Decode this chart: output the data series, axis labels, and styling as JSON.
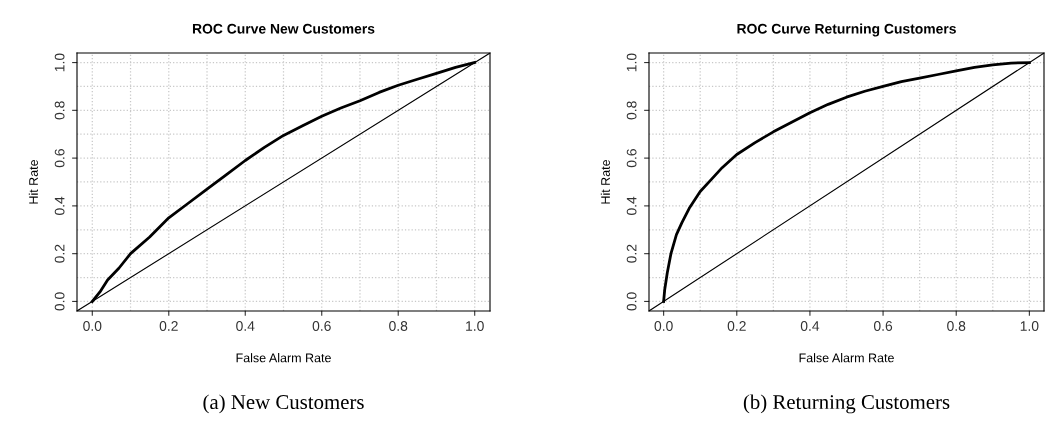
{
  "chart_data": [
    {
      "type": "line",
      "title": "ROC Curve New Customers",
      "xlabel": "False Alarm Rate",
      "ylabel": "Hit Rate",
      "annotations": [
        "(a) New Customers"
      ],
      "series": [
        {
          "color": "#000000",
          "x": [
            0,
            0.02,
            0.04,
            0.07,
            0.1,
            0.15,
            0.2,
            0.25,
            0.3,
            0.35,
            0.4,
            0.45,
            0.5,
            0.55,
            0.6,
            0.65,
            0.7,
            0.75,
            0.8,
            0.85,
            0.9,
            0.95,
            1
          ],
          "values": [
            0,
            0.04,
            0.09,
            0.14,
            0.2,
            0.27,
            0.35,
            0.41,
            0.47,
            0.53,
            0.59,
            0.645,
            0.695,
            0.735,
            0.775,
            0.81,
            0.84,
            0.875,
            0.905,
            0.93,
            0.955,
            0.98,
            1
          ]
        },
        {
          "color": "#000000",
          "x": [
            -0.04,
            1.04
          ],
          "values": [
            -0.04,
            1.04
          ]
        }
      ],
      "xlim": [
        -0.04,
        1.04
      ],
      "ylim": [
        -0.04,
        1.04
      ],
      "xticks": [
        {
          "value": 0,
          "label": "0.0"
        },
        {
          "value": 0.1,
          "label": null
        },
        0.2,
        {
          "value": 0.3,
          "label": null
        },
        0.4,
        {
          "value": 0.5,
          "label": null
        },
        0.6,
        {
          "value": 0.7,
          "label": null
        },
        0.8,
        {
          "value": 0.9,
          "label": null
        },
        {
          "value": 1,
          "label": "1.0"
        }
      ],
      "yticks": [
        {
          "value": 0,
          "label": "0.0"
        },
        {
          "value": 0.1,
          "label": null
        },
        0.2,
        {
          "value": 0.3,
          "label": null
        },
        0.4,
        {
          "value": 0.5,
          "label": null
        },
        0.6,
        {
          "value": 0.7,
          "label": null
        },
        0.8,
        {
          "value": 0.9,
          "label": null
        },
        {
          "value": 1,
          "label": "1.0"
        }
      ],
      "grid": true,
      "line_style": "solid"
    },
    {
      "type": "line",
      "title": "ROC Curve Returning Customers",
      "xlabel": "False Alarm Rate",
      "ylabel": "Hit Rate",
      "annotations": [
        "(b) Returning Customers"
      ],
      "series": [
        {
          "color": "#000000",
          "x": [
            0,
            0.003,
            0.01,
            0.02,
            0.035,
            0.05,
            0.07,
            0.1,
            0.13,
            0.16,
            0.2,
            0.25,
            0.3,
            0.35,
            0.4,
            0.45,
            0.5,
            0.55,
            0.6,
            0.65,
            0.7,
            0.75,
            0.8,
            0.85,
            0.9,
            0.95,
            1
          ],
          "values": [
            0,
            0.05,
            0.12,
            0.2,
            0.28,
            0.33,
            0.39,
            0.46,
            0.51,
            0.56,
            0.615,
            0.665,
            0.71,
            0.75,
            0.79,
            0.825,
            0.855,
            0.88,
            0.9,
            0.92,
            0.935,
            0.95,
            0.965,
            0.98,
            0.99,
            0.998,
            1
          ]
        },
        {
          "color": "#000000",
          "x": [
            -0.04,
            1.04
          ],
          "values": [
            -0.04,
            1.04
          ]
        }
      ],
      "xlim": [
        -0.04,
        1.04
      ],
      "ylim": [
        -0.04,
        1.04
      ],
      "xticks": [
        {
          "value": 0,
          "label": "0.0"
        },
        {
          "value": 0.1,
          "label": null
        },
        0.2,
        {
          "value": 0.3,
          "label": null
        },
        0.4,
        {
          "value": 0.5,
          "label": null
        },
        0.6,
        {
          "value": 0.7,
          "label": null
        },
        0.8,
        {
          "value": 0.9,
          "label": null
        },
        {
          "value": 1,
          "label": "1.0"
        }
      ],
      "yticks": [
        {
          "value": 0,
          "label": "0.0"
        },
        {
          "value": 0.1,
          "label": null
        },
        0.2,
        {
          "value": 0.3,
          "label": null
        },
        0.4,
        {
          "value": 0.5,
          "label": null
        },
        0.6,
        {
          "value": 0.7,
          "label": null
        },
        0.8,
        {
          "value": 0.9,
          "label": null
        },
        {
          "value": 1,
          "label": "1.0"
        }
      ],
      "grid": true,
      "line_style": "solid"
    }
  ]
}
